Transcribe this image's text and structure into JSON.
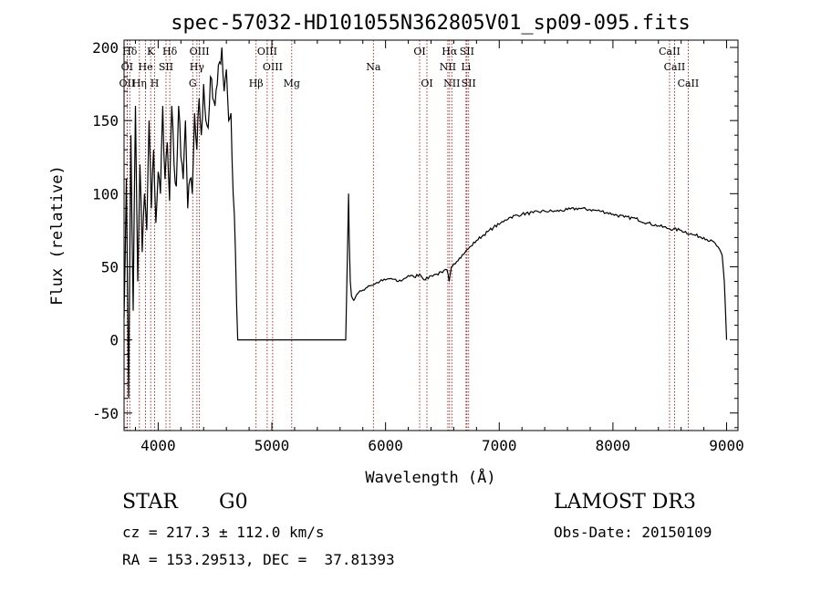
{
  "chart_data": {
    "type": "line",
    "title": "spec-57032-HD101055N362805V01_sp09-095.fits",
    "xlabel": "Wavelength (Å)",
    "ylabel": "Flux (relative)",
    "xlim": [
      3700,
      9100
    ],
    "ylim": [
      -62,
      205
    ],
    "x_ticks": [
      4000,
      5000,
      6000,
      7000,
      8000,
      9000
    ],
    "y_ticks": [
      -50,
      0,
      50,
      100,
      150,
      200
    ],
    "grid": false,
    "legend": "none",
    "line_color": "#000000",
    "marker_color": "#a00000",
    "series": [
      {
        "x": [
          3700,
          3720,
          3740,
          3760,
          3780,
          3800,
          3820,
          3840,
          3860,
          3880,
          3900,
          3920,
          3940,
          3960,
          3980,
          4000,
          4020,
          4040,
          4060,
          4080,
          4100,
          4120,
          4140,
          4160,
          4180,
          4200,
          4220,
          4240,
          4260,
          4280,
          4300,
          4320,
          4340,
          4360,
          4380,
          4400,
          4420,
          4440,
          4460,
          4480,
          4500,
          4520,
          4540,
          4560,
          4580,
          4600,
          4620,
          4640,
          4660,
          4680,
          4700,
          4720,
          5650,
          5665,
          5675,
          5680,
          5690,
          5700,
          5720,
          5740,
          5760,
          5800,
          5850,
          5900,
          5950,
          6000,
          6050,
          6100,
          6150,
          6200,
          6250,
          6300,
          6350,
          6400,
          6450,
          6500,
          6540,
          6560,
          6580,
          6600,
          6650,
          6700,
          6750,
          6800,
          6850,
          6900,
          6950,
          7000,
          7050,
          7100,
          7200,
          7300,
          7400,
          7500,
          7600,
          7700,
          7800,
          7900,
          8000,
          8100,
          8200,
          8300,
          8400,
          8500,
          8600,
          8700,
          8800,
          8900,
          8960,
          8980,
          9000
        ],
        "y": [
          15,
          110,
          -40,
          140,
          20,
          160,
          40,
          120,
          60,
          100,
          75,
          150,
          90,
          130,
          80,
          115,
          100,
          160,
          110,
          135,
          95,
          160,
          120,
          105,
          160,
          125,
          110,
          150,
          90,
          110,
          100,
          155,
          130,
          165,
          140,
          175,
          150,
          145,
          180,
          165,
          160,
          175,
          190,
          200,
          170,
          185,
          150,
          155,
          100,
          60,
          0,
          0,
          0,
          60,
          100,
          70,
          40,
          30,
          27,
          30,
          32,
          34,
          37,
          38,
          40,
          41,
          42,
          40,
          41,
          44,
          43,
          45,
          41,
          44,
          45,
          46,
          48,
          40,
          50,
          52,
          56,
          60,
          64,
          68,
          71,
          74,
          77,
          79,
          82,
          84,
          86,
          87,
          88,
          88,
          89,
          90,
          89,
          88,
          86,
          84,
          83,
          80,
          78,
          76,
          75,
          72,
          70,
          66,
          58,
          40,
          0
        ]
      }
    ],
    "lines": [
      {
        "label": "Hδ",
        "x": 3750,
        "row": 0
      },
      {
        "label": "K",
        "x": 3934,
        "row": 0
      },
      {
        "label": "Hδ",
        "x": 4102,
        "row": 0
      },
      {
        "label": "OIII",
        "x": 4363,
        "row": 0
      },
      {
        "label": "OIII",
        "x": 4959,
        "row": 0
      },
      {
        "label": "OI",
        "x": 6300,
        "row": 0
      },
      {
        "label": "Hα",
        "x": 6563,
        "row": 0
      },
      {
        "label": "SII",
        "x": 6716,
        "row": 0
      },
      {
        "label": "CaII",
        "x": 8498,
        "row": 0
      },
      {
        "label": "OI",
        "x": 3727,
        "row": 1
      },
      {
        "label": "He",
        "x": 3889,
        "row": 1
      },
      {
        "label": "SII",
        "x": 4069,
        "row": 1
      },
      {
        "label": "Hγ",
        "x": 4341,
        "row": 1
      },
      {
        "label": "OIII",
        "x": 5007,
        "row": 1
      },
      {
        "label": "Na",
        "x": 5893,
        "row": 1
      },
      {
        "label": "NII",
        "x": 6548,
        "row": 1
      },
      {
        "label": "Li",
        "x": 6708,
        "row": 1
      },
      {
        "label": "CaII",
        "x": 8542,
        "row": 1
      },
      {
        "label": "OII",
        "x": 3727,
        "row": 2
      },
      {
        "label": "Hη",
        "x": 3835,
        "row": 2
      },
      {
        "label": "H",
        "x": 3969,
        "row": 2
      },
      {
        "label": "G",
        "x": 4304,
        "row": 2
      },
      {
        "label": "Hβ",
        "x": 4861,
        "row": 2
      },
      {
        "label": "Mg",
        "x": 5175,
        "row": 2
      },
      {
        "label": "OI",
        "x": 6364,
        "row": 2
      },
      {
        "label": "NII",
        "x": 6583,
        "row": 2
      },
      {
        "label": "SII",
        "x": 6731,
        "row": 2
      },
      {
        "label": "CaII",
        "x": 8662,
        "row": 2
      }
    ]
  },
  "info": {
    "object_class": "STAR",
    "subclass": "G0",
    "survey": "LAMOST DR3",
    "cz": "cz = 217.3 ± 112.0 km/s",
    "obs_date": "Obs-Date: 20150109",
    "coords": "RA = 153.29513, DEC =  37.81393"
  }
}
